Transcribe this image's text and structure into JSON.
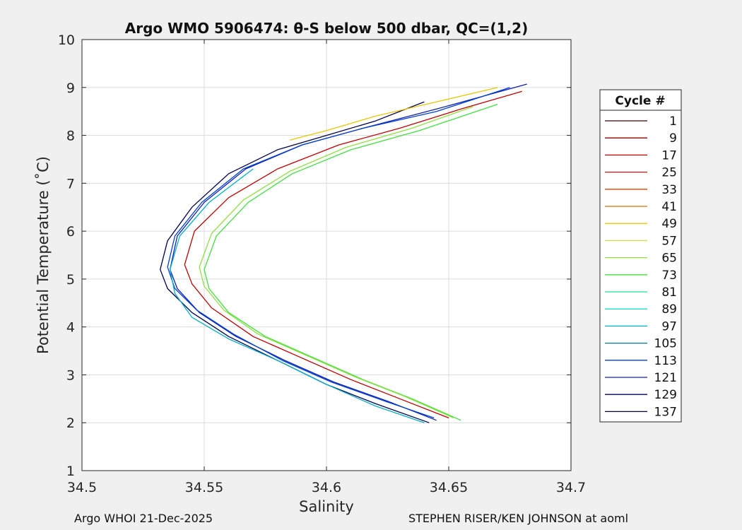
{
  "chart_data": {
    "type": "line",
    "title": "Argo WMO 5906474: θ-S below 500 dbar,  QC=(1,2)",
    "xlabel": "Salinity",
    "ylabel": "Potential Temperature (˚C)",
    "xlim": [
      34.5,
      34.7
    ],
    "ylim": [
      1,
      10
    ],
    "xticks": [
      "34.5",
      "34.55",
      "34.6",
      "34.65",
      "34.7"
    ],
    "yticks": [
      "1",
      "2",
      "3",
      "4",
      "5",
      "6",
      "7",
      "8",
      "9",
      "10"
    ],
    "grid": true,
    "legend": {
      "title": "Cycle #",
      "placement": "right",
      "entries": [
        {
          "label": "1",
          "color": "#3a0000"
        },
        {
          "label": "9",
          "color": "#8b0000"
        },
        {
          "label": "17",
          "color": "#c00000"
        },
        {
          "label": "25",
          "color": "#e01010"
        },
        {
          "label": "33",
          "color": "#e04000"
        },
        {
          "label": "41",
          "color": "#d07800"
        },
        {
          "label": "49",
          "color": "#e8c800"
        },
        {
          "label": "57",
          "color": "#c8e040"
        },
        {
          "label": "65",
          "color": "#90e040"
        },
        {
          "label": "73",
          "color": "#40e040"
        },
        {
          "label": "81",
          "color": "#20e090"
        },
        {
          "label": "89",
          "color": "#20d8c0"
        },
        {
          "label": "97",
          "color": "#00b0c8"
        },
        {
          "label": "105",
          "color": "#0078a0"
        },
        {
          "label": "113",
          "color": "#0040d0"
        },
        {
          "label": "121",
          "color": "#1020b0"
        },
        {
          "label": "129",
          "color": "#000080"
        },
        {
          "label": "137",
          "color": "#000050"
        }
      ]
    },
    "series": [
      {
        "color": "#000050",
        "points": [
          [
            34.642,
            2.0
          ],
          [
            34.62,
            2.4
          ],
          [
            34.6,
            2.8
          ],
          [
            34.58,
            3.3
          ],
          [
            34.56,
            3.8
          ],
          [
            34.545,
            4.3
          ],
          [
            34.535,
            4.8
          ],
          [
            34.532,
            5.2
          ],
          [
            34.535,
            5.8
          ],
          [
            34.545,
            6.5
          ],
          [
            34.56,
            7.2
          ],
          [
            34.58,
            7.7
          ],
          [
            34.6,
            8.0
          ],
          [
            34.62,
            8.3
          ],
          [
            34.64,
            8.7
          ]
        ]
      },
      {
        "color": "#1020b0",
        "points": [
          [
            34.645,
            2.05
          ],
          [
            34.625,
            2.45
          ],
          [
            34.603,
            2.85
          ],
          [
            34.583,
            3.3
          ],
          [
            34.563,
            3.8
          ],
          [
            34.548,
            4.3
          ],
          [
            34.539,
            4.8
          ],
          [
            34.536,
            5.2
          ],
          [
            34.539,
            5.9
          ],
          [
            34.55,
            6.6
          ],
          [
            34.567,
            7.3
          ],
          [
            34.59,
            7.8
          ],
          [
            34.615,
            8.15
          ],
          [
            34.645,
            8.55
          ],
          [
            34.682,
            9.07
          ]
        ]
      },
      {
        "color": "#0040d0",
        "points": [
          [
            34.644,
            2.1
          ],
          [
            34.624,
            2.45
          ],
          [
            34.602,
            2.85
          ],
          [
            34.582,
            3.3
          ],
          [
            34.562,
            3.85
          ],
          [
            34.547,
            4.35
          ],
          [
            34.538,
            4.8
          ],
          [
            34.535,
            5.25
          ],
          [
            34.538,
            5.9
          ],
          [
            34.549,
            6.6
          ],
          [
            34.566,
            7.3
          ],
          [
            34.59,
            7.8
          ],
          [
            34.615,
            8.15
          ],
          [
            34.645,
            8.5
          ],
          [
            34.675,
            9.0
          ]
        ]
      },
      {
        "color": "#00b0c8",
        "points": [
          [
            34.64,
            2.0
          ],
          [
            34.62,
            2.35
          ],
          [
            34.6,
            2.8
          ],
          [
            34.58,
            3.3
          ],
          [
            34.56,
            3.75
          ],
          [
            34.545,
            4.2
          ],
          [
            34.538,
            4.7
          ],
          [
            34.536,
            5.2
          ],
          [
            34.54,
            5.9
          ],
          [
            34.552,
            6.6
          ],
          [
            34.57,
            7.3
          ]
        ]
      },
      {
        "color": "#c00000",
        "points": [
          [
            34.65,
            2.1
          ],
          [
            34.63,
            2.5
          ],
          [
            34.61,
            2.9
          ],
          [
            34.59,
            3.35
          ],
          [
            34.57,
            3.8
          ],
          [
            34.553,
            4.4
          ],
          [
            34.545,
            4.9
          ],
          [
            34.542,
            5.3
          ],
          [
            34.546,
            6.0
          ],
          [
            34.56,
            6.7
          ],
          [
            34.58,
            7.3
          ],
          [
            34.605,
            7.8
          ],
          [
            34.63,
            8.15
          ],
          [
            34.655,
            8.55
          ],
          [
            34.68,
            8.92
          ]
        ]
      },
      {
        "color": "#40e040",
        "points": [
          [
            34.655,
            2.05
          ],
          [
            34.635,
            2.5
          ],
          [
            34.615,
            2.9
          ],
          [
            34.595,
            3.35
          ],
          [
            34.575,
            3.8
          ],
          [
            34.56,
            4.3
          ],
          [
            34.552,
            4.8
          ],
          [
            34.55,
            5.2
          ],
          [
            34.555,
            5.9
          ],
          [
            34.568,
            6.6
          ],
          [
            34.586,
            7.2
          ],
          [
            34.61,
            7.7
          ],
          [
            34.638,
            8.1
          ],
          [
            34.67,
            8.65
          ]
        ]
      },
      {
        "color": "#90e040",
        "points": [
          [
            34.652,
            2.1
          ],
          [
            34.632,
            2.55
          ],
          [
            34.612,
            2.95
          ],
          [
            34.592,
            3.4
          ],
          [
            34.572,
            3.85
          ],
          [
            34.558,
            4.35
          ],
          [
            34.55,
            4.85
          ],
          [
            34.548,
            5.25
          ],
          [
            34.553,
            5.95
          ],
          [
            34.566,
            6.65
          ],
          [
            34.585,
            7.25
          ],
          [
            34.608,
            7.75
          ],
          [
            34.635,
            8.15
          ],
          [
            34.66,
            8.6
          ]
        ]
      },
      {
        "color": "#e8c800",
        "points": [
          [
            34.585,
            7.9
          ],
          [
            34.6,
            8.1
          ],
          [
            34.62,
            8.4
          ],
          [
            34.645,
            8.7
          ],
          [
            34.67,
            9.0
          ]
        ]
      }
    ]
  },
  "footer": {
    "left": "Argo WHOI 21-Dec-2025",
    "right": "STEPHEN RISER/KEN JOHNSON at aoml"
  }
}
